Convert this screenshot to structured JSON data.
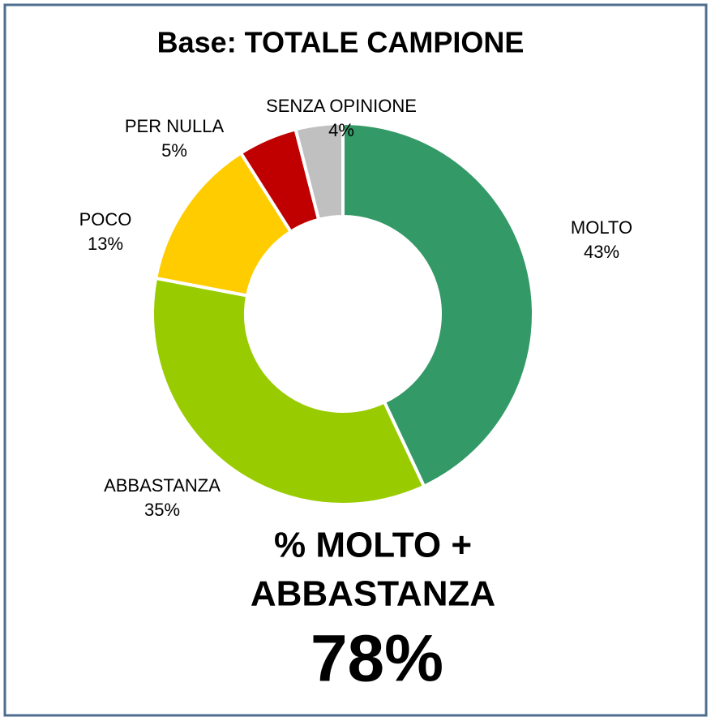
{
  "chart_data": {
    "type": "donut",
    "title": "Base: TOTALE CAMPIONE",
    "categories": [
      "MOLTO",
      "ABBASTANZA",
      "POCO",
      "PER NULLA",
      "SENZA OPINIONE"
    ],
    "values": [
      43,
      35,
      13,
      5,
      4
    ],
    "value_labels": [
      "43%",
      "35%",
      "13%",
      "5%",
      "4%"
    ],
    "colors": [
      "#339966",
      "#99cc00",
      "#ffcc00",
      "#c00000",
      "#c0c0c0"
    ],
    "annotations": [
      "% MOLTO +",
      "ABBASTANZA",
      "78%"
    ]
  }
}
